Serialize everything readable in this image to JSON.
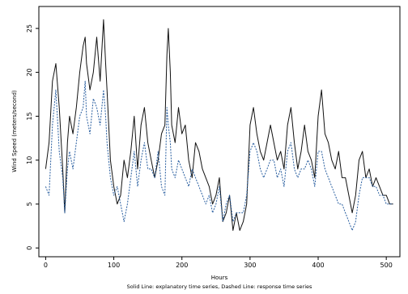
{
  "chart_data": {
    "type": "line",
    "xlabel": "Hours",
    "ylabel": "Wind Speed (meters/second)",
    "caption": "Solid Line: explanatory time series, Dashed Line: response time series",
    "xlim": [
      -10,
      520
    ],
    "ylim": [
      -1,
      27.5
    ],
    "xticks": [
      0,
      100,
      200,
      300,
      400,
      500
    ],
    "yticks": [
      0,
      5,
      10,
      15,
      20,
      25
    ],
    "grid": false,
    "legend": "none",
    "series": [
      {
        "style": "solid",
        "color": "#111111",
        "x": [
          0,
          5,
          10,
          15,
          20,
          25,
          28,
          32,
          35,
          40,
          45,
          50,
          55,
          58,
          60,
          65,
          70,
          75,
          80,
          85,
          88,
          90,
          95,
          100,
          105,
          110,
          115,
          120,
          125,
          130,
          135,
          140,
          145,
          150,
          155,
          160,
          165,
          170,
          175,
          178,
          180,
          183,
          185,
          190,
          195,
          200,
          205,
          210,
          215,
          220,
          225,
          230,
          235,
          240,
          245,
          250,
          255,
          260,
          265,
          270,
          275,
          280,
          285,
          290,
          295,
          300,
          305,
          310,
          315,
          320,
          325,
          330,
          335,
          340,
          345,
          350,
          355,
          360,
          365,
          370,
          375,
          380,
          385,
          390,
          395,
          400,
          405,
          410,
          415,
          420,
          425,
          430,
          435,
          440,
          445,
          450,
          455,
          460,
          465,
          470,
          475,
          480,
          485,
          490,
          495,
          500,
          505,
          510
        ],
        "y": [
          9,
          12,
          19,
          21,
          16,
          9,
          4,
          12,
          15,
          13,
          16,
          20,
          23,
          24,
          21,
          18,
          20,
          24,
          19,
          26,
          21,
          18,
          10,
          7,
          5,
          6,
          10,
          8,
          11,
          15,
          9,
          14,
          16,
          12,
          10,
          8,
          10,
          13,
          14,
          22,
          25,
          20,
          14,
          12,
          16,
          13,
          14,
          10,
          8,
          12,
          11,
          9,
          8,
          7,
          5,
          6,
          8,
          3,
          4,
          6,
          2,
          4,
          2,
          3,
          5,
          14,
          16,
          13,
          11,
          10,
          12,
          14,
          12,
          10,
          11,
          9,
          14,
          16,
          12,
          9,
          11,
          14,
          11,
          10,
          8,
          15,
          18,
          13,
          12,
          10,
          9,
          11,
          8,
          8,
          6,
          4,
          6,
          10,
          11,
          8,
          9,
          7,
          8,
          7,
          6,
          6,
          5,
          5
        ]
      },
      {
        "style": "dashed",
        "color": "#2a5fa0",
        "x": [
          0,
          5,
          10,
          15,
          20,
          25,
          28,
          32,
          35,
          40,
          45,
          50,
          55,
          58,
          60,
          65,
          70,
          75,
          80,
          85,
          88,
          90,
          95,
          100,
          105,
          110,
          115,
          120,
          125,
          130,
          135,
          140,
          145,
          150,
          155,
          160,
          165,
          170,
          175,
          178,
          180,
          183,
          185,
          190,
          195,
          200,
          205,
          210,
          215,
          220,
          225,
          230,
          235,
          240,
          245,
          250,
          255,
          260,
          265,
          270,
          275,
          280,
          285,
          290,
          295,
          300,
          305,
          310,
          315,
          320,
          325,
          330,
          335,
          340,
          345,
          350,
          355,
          360,
          365,
          370,
          375,
          380,
          385,
          390,
          395,
          400,
          405,
          410,
          415,
          420,
          425,
          430,
          435,
          440,
          445,
          450,
          455,
          460,
          465,
          470,
          475,
          480,
          485,
          490,
          495,
          500,
          505,
          510
        ],
        "y": [
          7,
          6,
          14,
          18,
          11,
          8,
          4,
          9,
          11,
          9,
          12,
          15,
          16,
          19,
          15,
          13,
          17,
          16,
          14,
          18,
          15,
          12,
          8,
          6,
          7,
          5,
          3,
          5,
          8,
          11,
          7,
          10,
          12,
          9,
          9,
          8,
          11,
          7,
          6,
          16,
          14,
          12,
          9,
          8,
          10,
          9,
          8,
          7,
          9,
          8,
          7,
          6,
          5,
          6,
          4,
          5,
          7,
          3,
          5,
          6,
          3,
          4,
          4,
          4,
          6,
          11,
          12,
          11,
          9,
          8,
          9,
          10,
          10,
          8,
          9,
          7,
          11,
          12,
          9,
          8,
          9,
          9,
          10,
          9,
          7,
          11,
          11,
          9,
          8,
          7,
          6,
          5,
          5,
          4,
          3,
          2,
          3,
          6,
          8,
          8,
          8,
          7,
          7,
          6,
          6,
          5,
          5,
          5
        ]
      }
    ]
  }
}
